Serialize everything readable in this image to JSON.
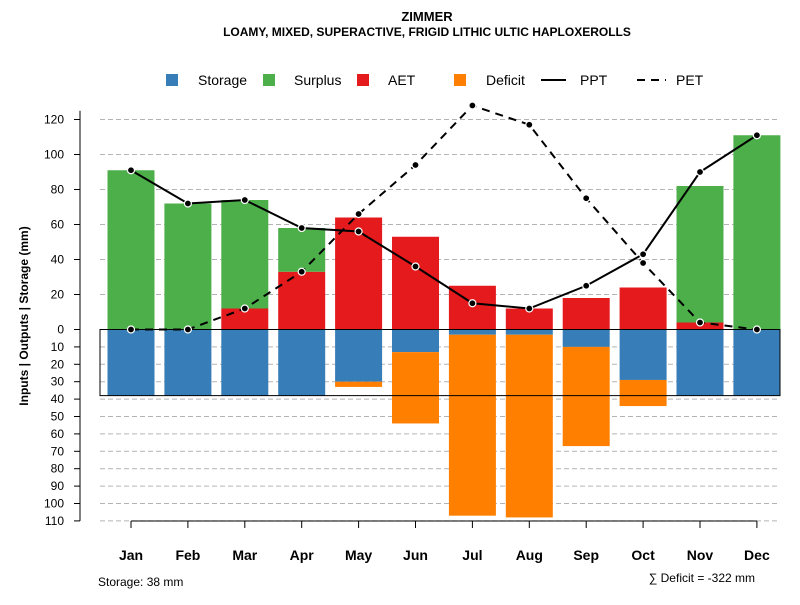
{
  "chart_data": {
    "type": "bar",
    "title": "ZIMMER",
    "subtitle": "LOAMY, MIXED, SUPERACTIVE, FRIGID LITHIC ULTIC HAPLOXEROLLS",
    "ylabel": "Inputs | Outputs | Storage    (mm)",
    "categories": [
      "Jan",
      "Feb",
      "Mar",
      "Apr",
      "May",
      "Jun",
      "Jul",
      "Aug",
      "Sep",
      "Oct",
      "Nov",
      "Dec"
    ],
    "upper_axis": {
      "ylim": [
        0,
        125
      ],
      "ticks": [
        "0",
        "20",
        "40",
        "60",
        "80",
        "100",
        "120"
      ]
    },
    "lower_axis": {
      "ylim": [
        0,
        110
      ],
      "ticks": [
        "10",
        "20",
        "30",
        "40",
        "50",
        "60",
        "70",
        "80",
        "90",
        "100",
        "110"
      ]
    },
    "series": [
      {
        "name": "Storage",
        "color": "#377EB8",
        "direction": "down",
        "values": [
          38,
          38,
          38,
          38,
          30,
          13,
          3,
          3,
          10,
          29,
          38,
          38
        ]
      },
      {
        "name": "Deficit",
        "color": "#FF7F00",
        "direction": "down",
        "values": [
          0,
          0,
          0,
          0,
          3,
          41,
          104,
          105,
          57,
          15,
          0,
          0
        ]
      },
      {
        "name": "AET",
        "color": "#E41A1C",
        "direction": "up",
        "values": [
          0,
          0,
          12,
          33,
          64,
          53,
          25,
          12,
          18,
          24,
          4,
          0
        ]
      },
      {
        "name": "Surplus",
        "color": "#4DAF4A",
        "direction": "up",
        "values": [
          91,
          72,
          62,
          25,
          0,
          0,
          0,
          0,
          0,
          0,
          78,
          111
        ]
      },
      {
        "name": "PPT",
        "color": "#000000",
        "line": "solid",
        "values": [
          91,
          72,
          74,
          58,
          56,
          36,
          15,
          12,
          25,
          43,
          90,
          111
        ]
      },
      {
        "name": "PET",
        "color": "#000000",
        "line": "dashed",
        "values": [
          0,
          0,
          12,
          33,
          66,
          94,
          128,
          117,
          75,
          38,
          4,
          0
        ]
      }
    ],
    "legend": [
      "Storage",
      "Surplus",
      "AET",
      "Deficit",
      "PPT",
      "PET"
    ],
    "storage_note": "Storage: 38 mm",
    "deficit_note": "∑ Deficit = -322 mm",
    "grid": true
  }
}
